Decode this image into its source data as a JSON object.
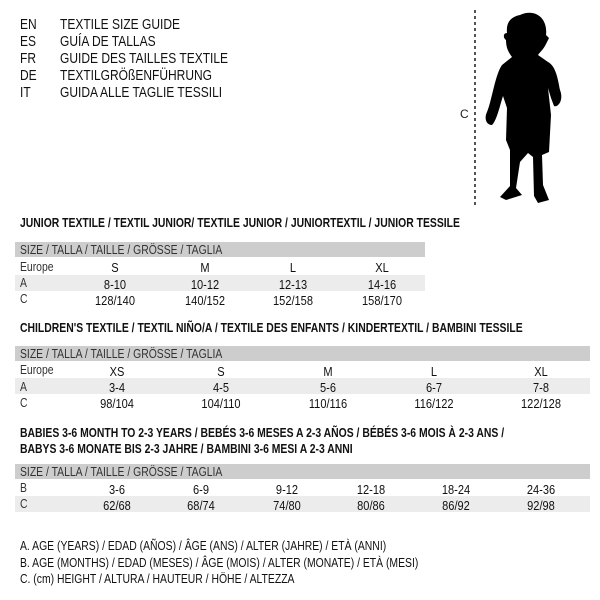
{
  "titles": [
    {
      "code": "EN",
      "text": "TEXTILE SIZE GUIDE"
    },
    {
      "code": "ES",
      "text": "GUÍA DE TALLAS"
    },
    {
      "code": "FR",
      "text": "GUIDE DES TAILLES TEXTILE"
    },
    {
      "code": "DE",
      "text": "TEXTILGRÖßENFÜHRUNG"
    },
    {
      "code": "IT",
      "text": "GUIDA ALLE TAGLIE TESSILI"
    }
  ],
  "figure": {
    "label": "C"
  },
  "junior": {
    "heading": "JUNIOR TEXTILE / TEXTIL JUNIOR/ TEXTILE JUNIOR / JUNIORTEXTIL / JUNIOR TESSILE",
    "size_header": "SIZE / TALLA / TAILLE / GRÖSSE / TAGLIA",
    "rows": [
      {
        "label": "Europe",
        "values": [
          "S",
          "M",
          "L",
          "XL"
        ]
      },
      {
        "label": "A",
        "values": [
          "8-10",
          "10-12",
          "12-13",
          "14-16"
        ]
      },
      {
        "label": "C",
        "values": [
          "128/140",
          "140/152",
          "152/158",
          "158/170"
        ]
      }
    ]
  },
  "children": {
    "heading": "CHILDREN'S TEXTILE / TEXTIL NIÑO/A / TEXTILE DES ENFANTS / KINDERTEXTIL / BAMBINI TESSILE",
    "size_header": "SIZE / TALLA / TAILLE / GRÖSSE / TAGLIA",
    "rows": [
      {
        "label": "Europe",
        "values": [
          "XS",
          "S",
          "M",
          "L",
          "XL"
        ]
      },
      {
        "label": "A",
        "values": [
          "3-4",
          "4-5",
          "5-6",
          "6-7",
          "7-8"
        ]
      },
      {
        "label": "C",
        "values": [
          "98/104",
          "104/110",
          "110/116",
          "116/122",
          "122/128"
        ]
      }
    ]
  },
  "babies": {
    "heading_line1": "BABIES 3-6 MONTH TO 2-3 YEARS / BEBÉS 3-6 MESES A 2-3 AÑOS / BÉBÉS 3-6 MOIS À 2-3 ANS /",
    "heading_line2": "BABYS 3-6 MONATE BIS 2-3 JAHRE / BAMBINI 3-6 MESI A 2-3 ANNI",
    "size_header": "SIZE / TALLA / TAILLE / GRÖSSE / TAGLIA",
    "rows": [
      {
        "label": "B",
        "values": [
          "3-6",
          "6-9",
          "9-12",
          "12-18",
          "18-24",
          "24-36"
        ]
      },
      {
        "label": "C",
        "values": [
          "62/68",
          "68/74",
          "74/80",
          "80/86",
          "86/92",
          "92/98"
        ]
      }
    ]
  },
  "legend": [
    "A. AGE (YEARS) / EDAD (AÑOS) / ÂGE (ANS) / ALTER (JAHRE) / ETÀ (ANNI)",
    "B. AGE (MONTHS) / EDAD (MESES) / ÂGE (MOIS) / ALTER (MONATE) / ETÀ (MESI)",
    "C. (cm) HEIGHT / ALTURA / HAUTEUR / HÖHE / ALTEZZA"
  ]
}
